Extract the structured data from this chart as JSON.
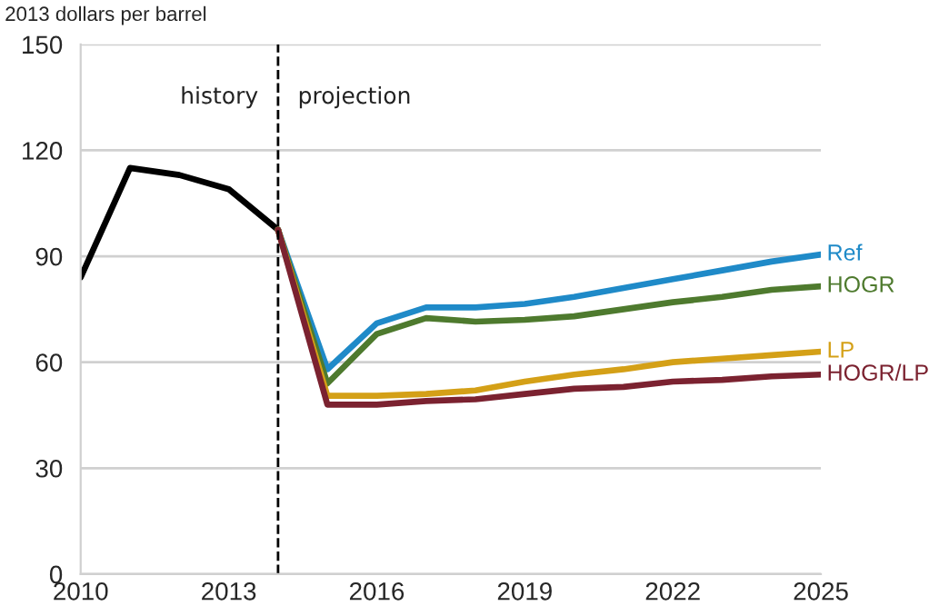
{
  "chart_data": {
    "type": "line",
    "ylabel": "2013 dollars per barrel",
    "xlim": [
      2010,
      2025
    ],
    "xticks": [
      2010,
      2013,
      2016,
      2019,
      2022,
      2025
    ],
    "ylim": [
      0,
      150
    ],
    "yticks": [
      0,
      30,
      60,
      90,
      120,
      150
    ],
    "grid": "y",
    "ref_lines": [
      {
        "axis": "x",
        "value": 2014,
        "label": null,
        "color": "#000000",
        "line_style": "dashed"
      }
    ],
    "annotations": [
      "history",
      "projection"
    ],
    "series": [
      {
        "color": "#000000",
        "x": [
          2010,
          2011,
          2012,
          2013,
          2014
        ],
        "values": [
          84,
          115,
          113,
          109,
          97.5
        ]
      },
      {
        "name": "Ref",
        "color": "#1f8ac8",
        "x": [
          2014,
          2015,
          2016,
          2017,
          2018,
          2019,
          2020,
          2021,
          2022,
          2023,
          2024,
          2025
        ],
        "values": [
          97.5,
          58,
          71,
          75.5,
          75.5,
          76.5,
          78.5,
          81,
          83.5,
          86,
          88.5,
          90.5
        ]
      },
      {
        "name": "HOGR",
        "color": "#4e7a2e",
        "x": [
          2014,
          2015,
          2016,
          2017,
          2018,
          2019,
          2020,
          2021,
          2022,
          2023,
          2024,
          2025
        ],
        "values": [
          97.5,
          54,
          68,
          72.5,
          71.5,
          72,
          73,
          75,
          77,
          78.5,
          80.5,
          81.5
        ]
      },
      {
        "name": "LP",
        "color": "#d4a017",
        "x": [
          2014,
          2015,
          2016,
          2017,
          2018,
          2019,
          2020,
          2021,
          2022,
          2023,
          2024,
          2025
        ],
        "values": [
          97.5,
          50.5,
          50.5,
          51,
          52,
          54.5,
          56.5,
          58,
          60,
          61,
          62,
          63
        ]
      },
      {
        "name": "HOGR/LP",
        "color": "#7b2230",
        "x": [
          2014,
          2015,
          2016,
          2017,
          2018,
          2019,
          2020,
          2021,
          2022,
          2023,
          2024,
          2025
        ],
        "values": [
          97.5,
          48,
          48,
          49,
          49.5,
          51,
          52.5,
          53,
          54.5,
          55,
          56,
          56.5
        ]
      }
    ]
  }
}
